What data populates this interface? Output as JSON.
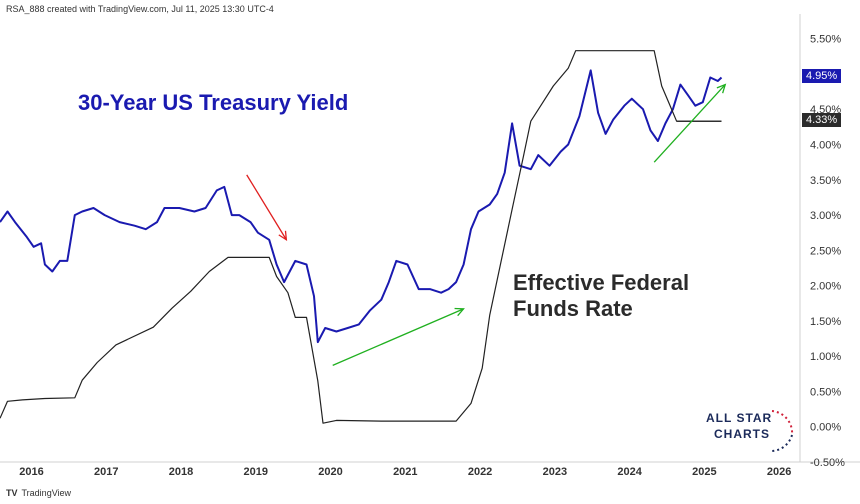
{
  "header": {
    "text": "RSA_888 created with TradingView.com, Jul 11, 2025 13:30 UTC-4"
  },
  "footer": {
    "brand": "TradingView"
  },
  "annotations": {
    "treasury_label": "30-Year US Treasury Yield",
    "fed_label_line1": "Effective Federal",
    "fed_label_line2": "Funds Rate"
  },
  "logo": {
    "line1": "ALL STAR",
    "line2": "CHARTS"
  },
  "colors": {
    "treasury": "#1a1ab0",
    "fed": "#222222",
    "arrow_red": "#e02020",
    "arrow_green": "#20b020",
    "badge_blue": "#1a1ab0",
    "badge_dark": "#2b2b2b"
  },
  "chart_data": {
    "type": "line",
    "x_ticks": [
      "2016",
      "2017",
      "2018",
      "2019",
      "2020",
      "2021",
      "2022",
      "2023",
      "2024",
      "2025",
      "2026"
    ],
    "y_ticks": [
      "5.50%",
      "5.00%",
      "4.50%",
      "4.00%",
      "3.50%",
      "3.00%",
      "2.50%",
      "2.00%",
      "1.50%",
      "1.00%",
      "0.50%",
      "0.00%",
      "-0.50%"
    ],
    "y_tick_values": [
      5.5,
      5.0,
      4.5,
      4.0,
      3.5,
      3.0,
      2.5,
      2.0,
      1.5,
      1.0,
      0.5,
      0.0,
      -0.5
    ],
    "ylim": [
      -0.5,
      5.85
    ],
    "xlim": [
      2015.9,
      2026.6
    ],
    "last_values": {
      "treasury": "4.95%",
      "fed": "4.33%"
    },
    "series": [
      {
        "key": "treasury",
        "points": [
          [
            2015.9,
            2.9
          ],
          [
            2016.0,
            3.05
          ],
          [
            2016.1,
            2.9
          ],
          [
            2016.25,
            2.7
          ],
          [
            2016.35,
            2.55
          ],
          [
            2016.45,
            2.6
          ],
          [
            2016.5,
            2.3
          ],
          [
            2016.6,
            2.2
          ],
          [
            2016.7,
            2.35
          ],
          [
            2016.8,
            2.35
          ],
          [
            2016.9,
            3.0
          ],
          [
            2017.0,
            3.05
          ],
          [
            2017.15,
            3.1
          ],
          [
            2017.3,
            3.0
          ],
          [
            2017.5,
            2.9
          ],
          [
            2017.7,
            2.85
          ],
          [
            2017.85,
            2.8
          ],
          [
            2018.0,
            2.9
          ],
          [
            2018.1,
            3.1
          ],
          [
            2018.3,
            3.1
          ],
          [
            2018.5,
            3.05
          ],
          [
            2018.65,
            3.1
          ],
          [
            2018.8,
            3.35
          ],
          [
            2018.9,
            3.4
          ],
          [
            2019.0,
            3.0
          ],
          [
            2019.1,
            3.0
          ],
          [
            2019.25,
            2.9
          ],
          [
            2019.35,
            2.75
          ],
          [
            2019.5,
            2.65
          ],
          [
            2019.6,
            2.3
          ],
          [
            2019.7,
            2.05
          ],
          [
            2019.85,
            2.35
          ],
          [
            2020.0,
            2.3
          ],
          [
            2020.1,
            1.85
          ],
          [
            2020.15,
            1.2
          ],
          [
            2020.25,
            1.4
          ],
          [
            2020.4,
            1.35
          ],
          [
            2020.55,
            1.4
          ],
          [
            2020.7,
            1.45
          ],
          [
            2020.85,
            1.65
          ],
          [
            2021.0,
            1.8
          ],
          [
            2021.1,
            2.05
          ],
          [
            2021.2,
            2.35
          ],
          [
            2021.35,
            2.3
          ],
          [
            2021.5,
            1.95
          ],
          [
            2021.65,
            1.95
          ],
          [
            2021.8,
            1.9
          ],
          [
            2021.9,
            1.95
          ],
          [
            2022.0,
            2.05
          ],
          [
            2022.1,
            2.3
          ],
          [
            2022.2,
            2.8
          ],
          [
            2022.3,
            3.05
          ],
          [
            2022.45,
            3.15
          ],
          [
            2022.55,
            3.3
          ],
          [
            2022.65,
            3.6
          ],
          [
            2022.75,
            4.3
          ],
          [
            2022.85,
            3.7
          ],
          [
            2023.0,
            3.65
          ],
          [
            2023.1,
            3.85
          ],
          [
            2023.25,
            3.7
          ],
          [
            2023.4,
            3.9
          ],
          [
            2023.5,
            4.0
          ],
          [
            2023.65,
            4.4
          ],
          [
            2023.8,
            5.05
          ],
          [
            2023.9,
            4.45
          ],
          [
            2024.0,
            4.15
          ],
          [
            2024.1,
            4.35
          ],
          [
            2024.25,
            4.55
          ],
          [
            2024.35,
            4.65
          ],
          [
            2024.5,
            4.5
          ],
          [
            2024.6,
            4.2
          ],
          [
            2024.7,
            4.05
          ],
          [
            2024.8,
            4.3
          ],
          [
            2024.9,
            4.5
          ],
          [
            2025.0,
            4.85
          ],
          [
            2025.1,
            4.7
          ],
          [
            2025.2,
            4.55
          ],
          [
            2025.3,
            4.6
          ],
          [
            2025.4,
            4.95
          ],
          [
            2025.5,
            4.9
          ],
          [
            2025.55,
            4.95
          ]
        ]
      },
      {
        "key": "fed",
        "points": [
          [
            2015.9,
            0.12
          ],
          [
            2016.0,
            0.36
          ],
          [
            2016.2,
            0.38
          ],
          [
            2016.5,
            0.4
          ],
          [
            2016.9,
            0.41
          ],
          [
            2017.0,
            0.66
          ],
          [
            2017.2,
            0.91
          ],
          [
            2017.45,
            1.16
          ],
          [
            2017.95,
            1.41
          ],
          [
            2018.2,
            1.68
          ],
          [
            2018.45,
            1.92
          ],
          [
            2018.7,
            2.2
          ],
          [
            2018.95,
            2.4
          ],
          [
            2019.5,
            2.4
          ],
          [
            2019.6,
            2.13
          ],
          [
            2019.75,
            1.9
          ],
          [
            2019.85,
            1.55
          ],
          [
            2020.0,
            1.55
          ],
          [
            2020.15,
            0.65
          ],
          [
            2020.22,
            0.05
          ],
          [
            2020.4,
            0.09
          ],
          [
            2021.0,
            0.08
          ],
          [
            2021.5,
            0.08
          ],
          [
            2022.0,
            0.08
          ],
          [
            2022.2,
            0.33
          ],
          [
            2022.35,
            0.83
          ],
          [
            2022.45,
            1.58
          ],
          [
            2022.6,
            2.33
          ],
          [
            2022.75,
            3.08
          ],
          [
            2022.9,
            3.83
          ],
          [
            2023.0,
            4.33
          ],
          [
            2023.15,
            4.58
          ],
          [
            2023.3,
            4.83
          ],
          [
            2023.5,
            5.08
          ],
          [
            2023.6,
            5.33
          ],
          [
            2024.65,
            5.33
          ],
          [
            2024.75,
            4.83
          ],
          [
            2024.85,
            4.58
          ],
          [
            2024.95,
            4.33
          ],
          [
            2025.55,
            4.33
          ]
        ]
      }
    ],
    "arrows": [
      {
        "key": "red",
        "from": [
          2019.2,
          3.57
        ],
        "to": [
          2019.73,
          2.65
        ]
      },
      {
        "key": "green1",
        "from": [
          2020.35,
          0.87
        ],
        "to": [
          2022.1,
          1.67
        ]
      },
      {
        "key": "green2",
        "from": [
          2024.65,
          3.75
        ],
        "to": [
          2025.6,
          4.85
        ]
      }
    ]
  }
}
